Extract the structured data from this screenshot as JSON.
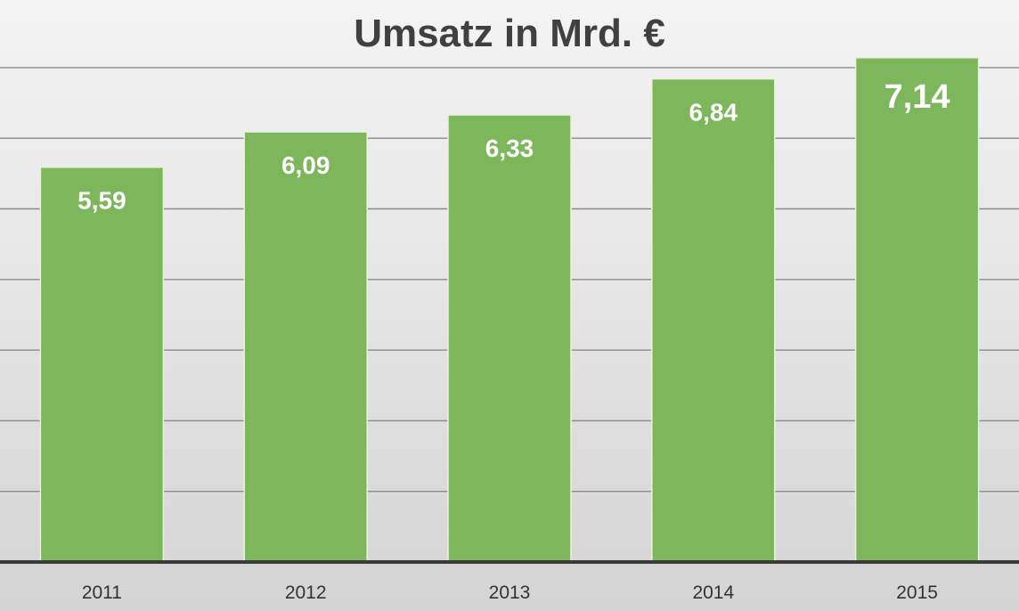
{
  "chart_data": {
    "type": "bar",
    "title": "Umsatz in Mrd.  €",
    "xlabel": "",
    "ylabel": "",
    "categories": [
      "2011",
      "2012",
      "2013",
      "2014",
      "2015"
    ],
    "values": [
      5.59,
      6.09,
      6.33,
      6.84,
      7.14
    ],
    "data_labels": [
      "5,59",
      "6,09",
      "6,33",
      "6,84",
      "7,14"
    ],
    "ylim": [
      0,
      7
    ],
    "grid": true,
    "legend": "none",
    "colors": {
      "bar": "#7eb65c",
      "label": "#ffffff",
      "title": "#404040"
    }
  }
}
